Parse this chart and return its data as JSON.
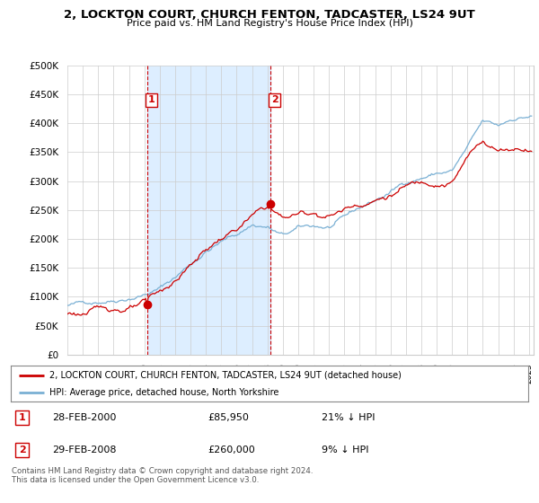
{
  "title": "2, LOCKTON COURT, CHURCH FENTON, TADCASTER, LS24 9UT",
  "subtitle": "Price paid vs. HM Land Registry's House Price Index (HPI)",
  "ylabel_ticks": [
    "£0",
    "£50K",
    "£100K",
    "£150K",
    "£200K",
    "£250K",
    "£300K",
    "£350K",
    "£400K",
    "£450K",
    "£500K"
  ],
  "ytick_values": [
    0,
    50000,
    100000,
    150000,
    200000,
    250000,
    300000,
    350000,
    400000,
    450000,
    500000
  ],
  "xlim_start": 1995.0,
  "xlim_end": 2025.3,
  "ylim": [
    0,
    500000
  ],
  "purchase1_x": 2000.167,
  "purchase1_y": 85950,
  "purchase1_label": "1",
  "purchase2_x": 2008.167,
  "purchase2_y": 260000,
  "purchase2_label": "2",
  "red_line_color": "#cc0000",
  "blue_line_color": "#7ab0d4",
  "shade_color": "#ddeeff",
  "vline_color": "#cc0000",
  "grid_color": "#cccccc",
  "background_color": "#ffffff",
  "legend_line1": "2, LOCKTON COURT, CHURCH FENTON, TADCASTER, LS24 9UT (detached house)",
  "legend_line2": "HPI: Average price, detached house, North Yorkshire",
  "table_row1": [
    "1",
    "28-FEB-2000",
    "£85,950",
    "21% ↓ HPI"
  ],
  "table_row2": [
    "2",
    "29-FEB-2008",
    "£260,000",
    "9% ↓ HPI"
  ],
  "footer": "Contains HM Land Registry data © Crown copyright and database right 2024.\nThis data is licensed under the Open Government Licence v3.0."
}
